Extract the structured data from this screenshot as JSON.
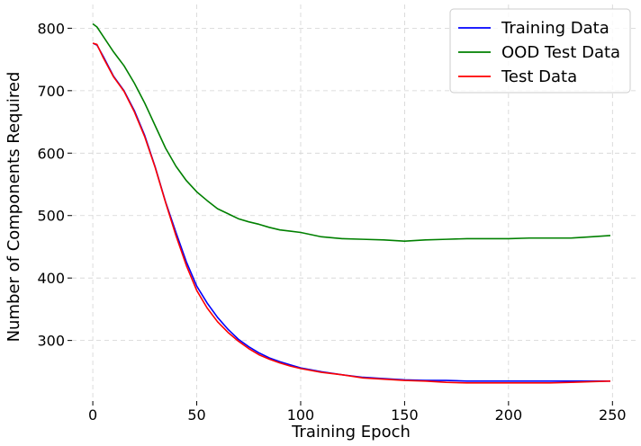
{
  "chart_data": {
    "type": "line",
    "title": "",
    "xlabel": "Training Epoch",
    "ylabel": "Number of Components Required",
    "xlim": [
      -10,
      262
    ],
    "ylim": [
      203,
      838
    ],
    "xticks": [
      0,
      50,
      100,
      150,
      200,
      250
    ],
    "yticks": [
      300,
      400,
      500,
      600,
      700,
      800
    ],
    "grid": true,
    "legend_position": "top-right",
    "series": [
      {
        "name": "Training Data",
        "color": "#0000ff",
        "x": [
          0,
          2,
          5,
          10,
          15,
          20,
          25,
          30,
          35,
          40,
          45,
          50,
          55,
          60,
          65,
          70,
          75,
          80,
          85,
          90,
          95,
          100,
          110,
          120,
          130,
          140,
          150,
          160,
          170,
          180,
          190,
          200,
          210,
          220,
          230,
          240,
          249
        ],
        "y": [
          776,
          773,
          755,
          723,
          700,
          668,
          628,
          578,
          522,
          473,
          426,
          387,
          360,
          337,
          318,
          302,
          290,
          280,
          272,
          266,
          261,
          256,
          250,
          245,
          241,
          239,
          237,
          236,
          236,
          235,
          235,
          235,
          235,
          235,
          235,
          235,
          235
        ]
      },
      {
        "name": "OOD Test Data",
        "color": "#008000",
        "x": [
          0,
          2,
          5,
          10,
          15,
          20,
          25,
          30,
          35,
          40,
          45,
          50,
          55,
          60,
          65,
          70,
          75,
          80,
          85,
          90,
          95,
          100,
          110,
          120,
          130,
          140,
          150,
          160,
          170,
          180,
          190,
          200,
          210,
          220,
          230,
          240,
          249
        ],
        "y": [
          807,
          802,
          787,
          762,
          740,
          712,
          680,
          644,
          608,
          579,
          556,
          538,
          524,
          511,
          503,
          495,
          490,
          486,
          481,
          477,
          475,
          473,
          466,
          463,
          462,
          461,
          459,
          461,
          462,
          463,
          463,
          463,
          464,
          464,
          464,
          466,
          468
        ]
      },
      {
        "name": "Test Data",
        "color": "#ff0000",
        "x": [
          0,
          2,
          5,
          10,
          15,
          20,
          25,
          30,
          35,
          40,
          45,
          50,
          55,
          60,
          65,
          70,
          75,
          80,
          85,
          90,
          95,
          100,
          110,
          120,
          130,
          140,
          150,
          160,
          170,
          180,
          190,
          200,
          210,
          220,
          230,
          240,
          249
        ],
        "y": [
          776,
          774,
          753,
          722,
          699,
          666,
          626,
          577,
          521,
          468,
          420,
          380,
          352,
          330,
          313,
          299,
          287,
          277,
          270,
          264,
          259,
          255,
          249,
          245,
          240,
          238,
          236,
          235,
          233,
          232,
          232,
          232,
          232,
          232,
          233,
          234,
          235
        ]
      }
    ]
  }
}
